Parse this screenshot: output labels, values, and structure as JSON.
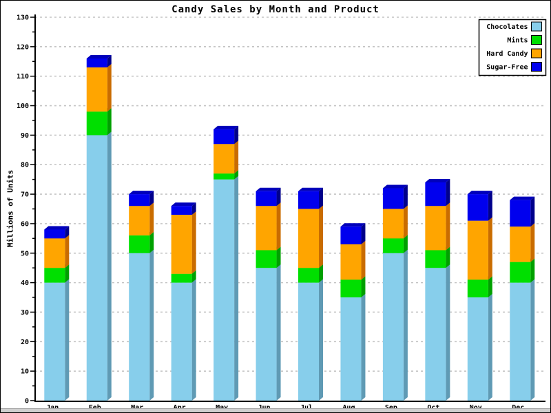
{
  "window": {
    "bottom_strip_color": "#cfcfcf",
    "background": "#ffffff"
  },
  "chart_data": {
    "type": "bar",
    "stacked": true,
    "effect_3d": true,
    "title": "Candy Sales by Month and Product",
    "ylabel": "Millions of Units",
    "xlabel": "",
    "ylim": [
      0,
      130
    ],
    "ytick_major": 10,
    "ytick_minor": 5,
    "ytick_labels": [
      "0",
      "10",
      "20",
      "30",
      "40",
      "50",
      "60",
      "70",
      "80",
      "90",
      "100",
      "110",
      "120",
      "130"
    ],
    "grid": true,
    "gridline_color": "#c4c4c4",
    "legend_position": "top-right",
    "categories": [
      "Jan",
      "Feb",
      "Mar",
      "Apr",
      "May",
      "Jun",
      "Jul",
      "Aug",
      "Sep",
      "Oct",
      "Nov",
      "Dec"
    ],
    "series": [
      {
        "name": "Chocolates",
        "color": "#87CEEB",
        "side_color": "#5f9ab4",
        "top_color": "#74b2cc",
        "values": [
          40,
          90,
          50,
          40,
          75,
          45,
          40,
          35,
          50,
          45,
          35,
          40
        ]
      },
      {
        "name": "Mints",
        "color": "#00DF00",
        "side_color": "#00A000",
        "top_color": "#00BC00",
        "values": [
          5,
          8,
          6,
          3,
          2,
          6,
          5,
          6,
          5,
          6,
          6,
          7
        ]
      },
      {
        "name": "Hard Candy",
        "color": "#FFA500",
        "side_color": "#C96C00",
        "top_color": "#E68A00",
        "values": [
          10,
          15,
          10,
          20,
          10,
          15,
          20,
          12,
          10,
          15,
          20,
          12
        ]
      },
      {
        "name": "Sugar-Free",
        "color": "#0000EE",
        "side_color": "#00008B",
        "top_color": "#0000BB",
        "values": [
          3,
          3,
          4,
          3,
          5,
          5,
          6,
          6,
          7,
          8,
          9,
          9
        ]
      }
    ],
    "totals": [
      58,
      116,
      70,
      66,
      92,
      71,
      71,
      59,
      72,
      74,
      70,
      68
    ],
    "legend": [
      "Chocolates",
      "Mints",
      "Hard Candy",
      "Sugar-Free"
    ]
  }
}
